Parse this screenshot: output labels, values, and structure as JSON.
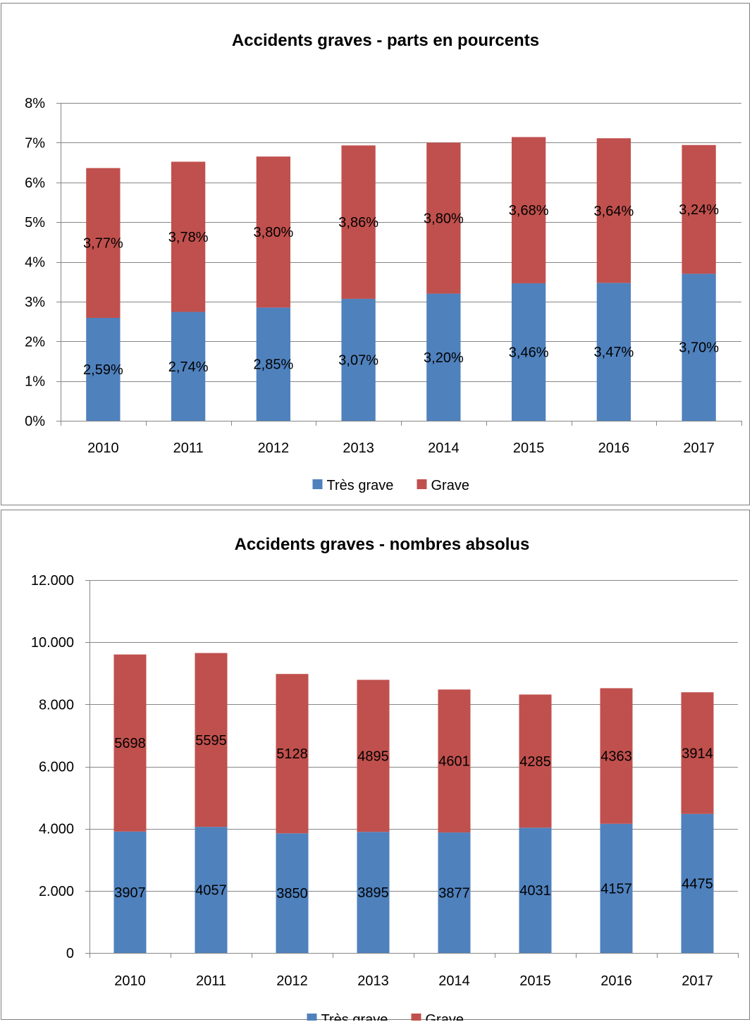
{
  "colors": {
    "tres_grave": "#4f81bd",
    "grave": "#c0504d",
    "gridline": "#868686",
    "axis": "#868686"
  },
  "chart_data": [
    {
      "type": "bar",
      "stacked": true,
      "title": "Accidents graves - parts en pourcents",
      "categories": [
        "2010",
        "2011",
        "2012",
        "2013",
        "2014",
        "2015",
        "2016",
        "2017"
      ],
      "series": [
        {
          "name": "Très grave",
          "color": "#4f81bd",
          "values": [
            2.59,
            2.74,
            2.85,
            3.07,
            3.2,
            3.46,
            3.47,
            3.7
          ],
          "labels": [
            "2,59%",
            "2,74%",
            "2,85%",
            "3,07%",
            "3,20%",
            "3,46%",
            "3,47%",
            "3,70%"
          ]
        },
        {
          "name": "Grave",
          "color": "#c0504d",
          "values": [
            3.77,
            3.78,
            3.8,
            3.86,
            3.8,
            3.68,
            3.64,
            3.24
          ],
          "labels": [
            "3,77%",
            "3,78%",
            "3,80%",
            "3,86%",
            "3,80%",
            "3,68%",
            "3,64%",
            "3,24%"
          ]
        }
      ],
      "ylim": [
        0,
        8
      ],
      "yticks": [
        0,
        1,
        2,
        3,
        4,
        5,
        6,
        7,
        8
      ],
      "ytick_labels": [
        "0%",
        "1%",
        "2%",
        "3%",
        "4%",
        "5%",
        "6%",
        "7%",
        "8%"
      ],
      "grid": true,
      "legend_position": "bottom"
    },
    {
      "type": "bar",
      "stacked": true,
      "title": "Accidents graves - nombres absolus",
      "categories": [
        "2010",
        "2011",
        "2012",
        "2013",
        "2014",
        "2015",
        "2016",
        "2017"
      ],
      "series": [
        {
          "name": "Très grave",
          "color": "#4f81bd",
          "values": [
            3907,
            4057,
            3850,
            3895,
            3877,
            4031,
            4157,
            4475
          ],
          "labels": [
            "3907",
            "4057",
            "3850",
            "3895",
            "3877",
            "4031",
            "4157",
            "4475"
          ]
        },
        {
          "name": "Grave",
          "color": "#c0504d",
          "values": [
            5698,
            5595,
            5128,
            4895,
            4601,
            4285,
            4363,
            3914
          ],
          "labels": [
            "5698",
            "5595",
            "5128",
            "4895",
            "4601",
            "4285",
            "4363",
            "3914"
          ]
        }
      ],
      "ylim": [
        0,
        12000
      ],
      "yticks": [
        0,
        2000,
        4000,
        6000,
        8000,
        10000,
        12000
      ],
      "ytick_labels": [
        "0",
        "2.000",
        "4.000",
        "6.000",
        "8.000",
        "10.000",
        "12.000"
      ],
      "grid": true,
      "legend_position": "bottom"
    }
  ]
}
